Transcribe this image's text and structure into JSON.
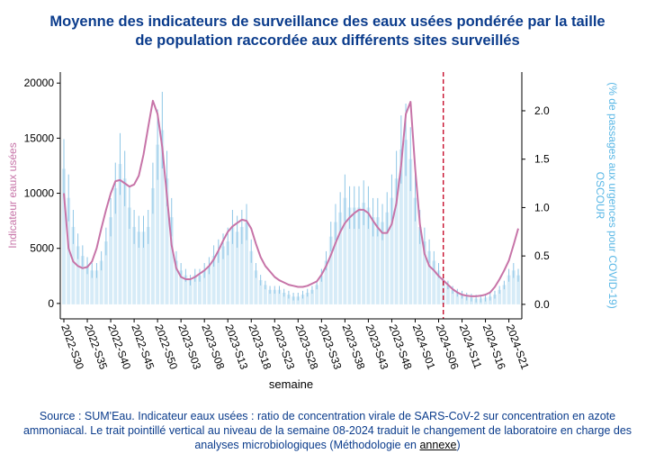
{
  "title_line1": "Moyenne des indicateurs de surveillance des eaux usées pondérée par la taille",
  "title_line2": "de population raccordée aux différents sites surveillés",
  "source_main": "Source : SUM'Eau. Indicateur eaux usées : ratio de concentration virale de SARS-CoV-2 sur concentration en azote ammoniacal. Le trait pointillé vertical au niveau de la semaine 08-2024 traduit le changement de laboratoire en charge des analyses microbiologiques (Méthodologie en ",
  "source_link": "annexe",
  "source_end": ")",
  "colors": {
    "title": "#0b3c8c",
    "line": "#c774a8",
    "bars": "#d6ebf7",
    "errorbars": "#8ec6e6",
    "ylabel_right": "#5bb8e6",
    "vline": "#c8102e"
  },
  "chart_data": {
    "type": "bar+line",
    "xlabel": "semaine",
    "ylabel_left": "Indicateur eaux usées",
    "ylabel_right": "OSCOUR\n(% de passages aux urgences pour COVID-19)",
    "ylim_left": [
      -1400,
      21000
    ],
    "ylim_right": [
      -0.15,
      2.4
    ],
    "yticks_left": [
      0,
      5000,
      10000,
      15000,
      20000
    ],
    "yticks_right": [
      0.0,
      0.5,
      1.0,
      1.5,
      2.0
    ],
    "xtick_labels": [
      "2022-S30",
      "2022-S35",
      "2022-S40",
      "2022-S45",
      "2022-S50",
      "2023-S03",
      "2023-S08",
      "2023-S13",
      "2023-S18",
      "2023-S23",
      "2023-S28",
      "2023-S33",
      "2023-S38",
      "2023-S43",
      "2023-S48",
      "2024-S01",
      "2024-S06",
      "2024-S11",
      "2024-S16",
      "2024-S21"
    ],
    "vline_week_index": 81,
    "series": [
      {
        "name": "Indicateur eaux usées",
        "axis": "left",
        "type": "line",
        "values": [
          10000,
          5000,
          3800,
          3400,
          3200,
          3300,
          3800,
          5000,
          6800,
          8500,
          10000,
          11100,
          11200,
          10900,
          10600,
          10800,
          11600,
          13500,
          16000,
          18400,
          17200,
          14200,
          9800,
          5300,
          3200,
          2400,
          2200,
          2200,
          2400,
          2700,
          3000,
          3400,
          4000,
          4800,
          5700,
          6500,
          7000,
          7300,
          7600,
          7500,
          6800,
          5400,
          4200,
          3400,
          2900,
          2400,
          2100,
          1900,
          1700,
          1600,
          1500,
          1500,
          1600,
          1800,
          2000,
          2600,
          3400,
          4400,
          5500,
          6500,
          7300,
          7800,
          8200,
          8500,
          8500,
          8200,
          7500,
          6900,
          6400,
          6400,
          7200,
          9100,
          12500,
          17200,
          18300,
          12200,
          7200,
          4500,
          3400,
          3000,
          2500,
          2100,
          1700,
          1300,
          1000,
          800,
          700,
          650,
          650,
          700,
          800,
          1000,
          1500,
          2200,
          3000,
          3900,
          5300,
          6800
        ]
      },
      {
        "name": "OSCOUR",
        "axis": "right",
        "type": "bar",
        "values": [
          1.4,
          1.1,
          0.8,
          0.6,
          0.5,
          0.4,
          0.35,
          0.35,
          0.45,
          0.65,
          0.9,
          1.2,
          1.45,
          1.3,
          1.0,
          0.8,
          0.75,
          0.75,
          0.8,
          1.2,
          1.65,
          1.8,
          1.3,
          0.9,
          0.45,
          0.35,
          0.3,
          0.25,
          0.3,
          0.3,
          0.35,
          0.4,
          0.5,
          0.55,
          0.6,
          0.65,
          0.8,
          0.75,
          0.8,
          0.85,
          0.55,
          0.35,
          0.25,
          0.2,
          0.15,
          0.15,
          0.15,
          0.12,
          0.1,
          0.08,
          0.08,
          0.1,
          0.12,
          0.15,
          0.2,
          0.3,
          0.45,
          0.7,
          0.85,
          0.95,
          1.1,
          1.0,
          1.0,
          1.0,
          1.05,
          1.0,
          0.9,
          0.9,
          0.85,
          0.95,
          1.1,
          1.3,
          1.6,
          1.7,
          1.5,
          1.1,
          0.8,
          0.65,
          0.55,
          0.45,
          0.35,
          0.25,
          0.2,
          0.15,
          0.12,
          0.1,
          0.08,
          0.07,
          0.06,
          0.06,
          0.07,
          0.08,
          0.1,
          0.15,
          0.2,
          0.3,
          0.35,
          0.3
        ]
      }
    ]
  }
}
